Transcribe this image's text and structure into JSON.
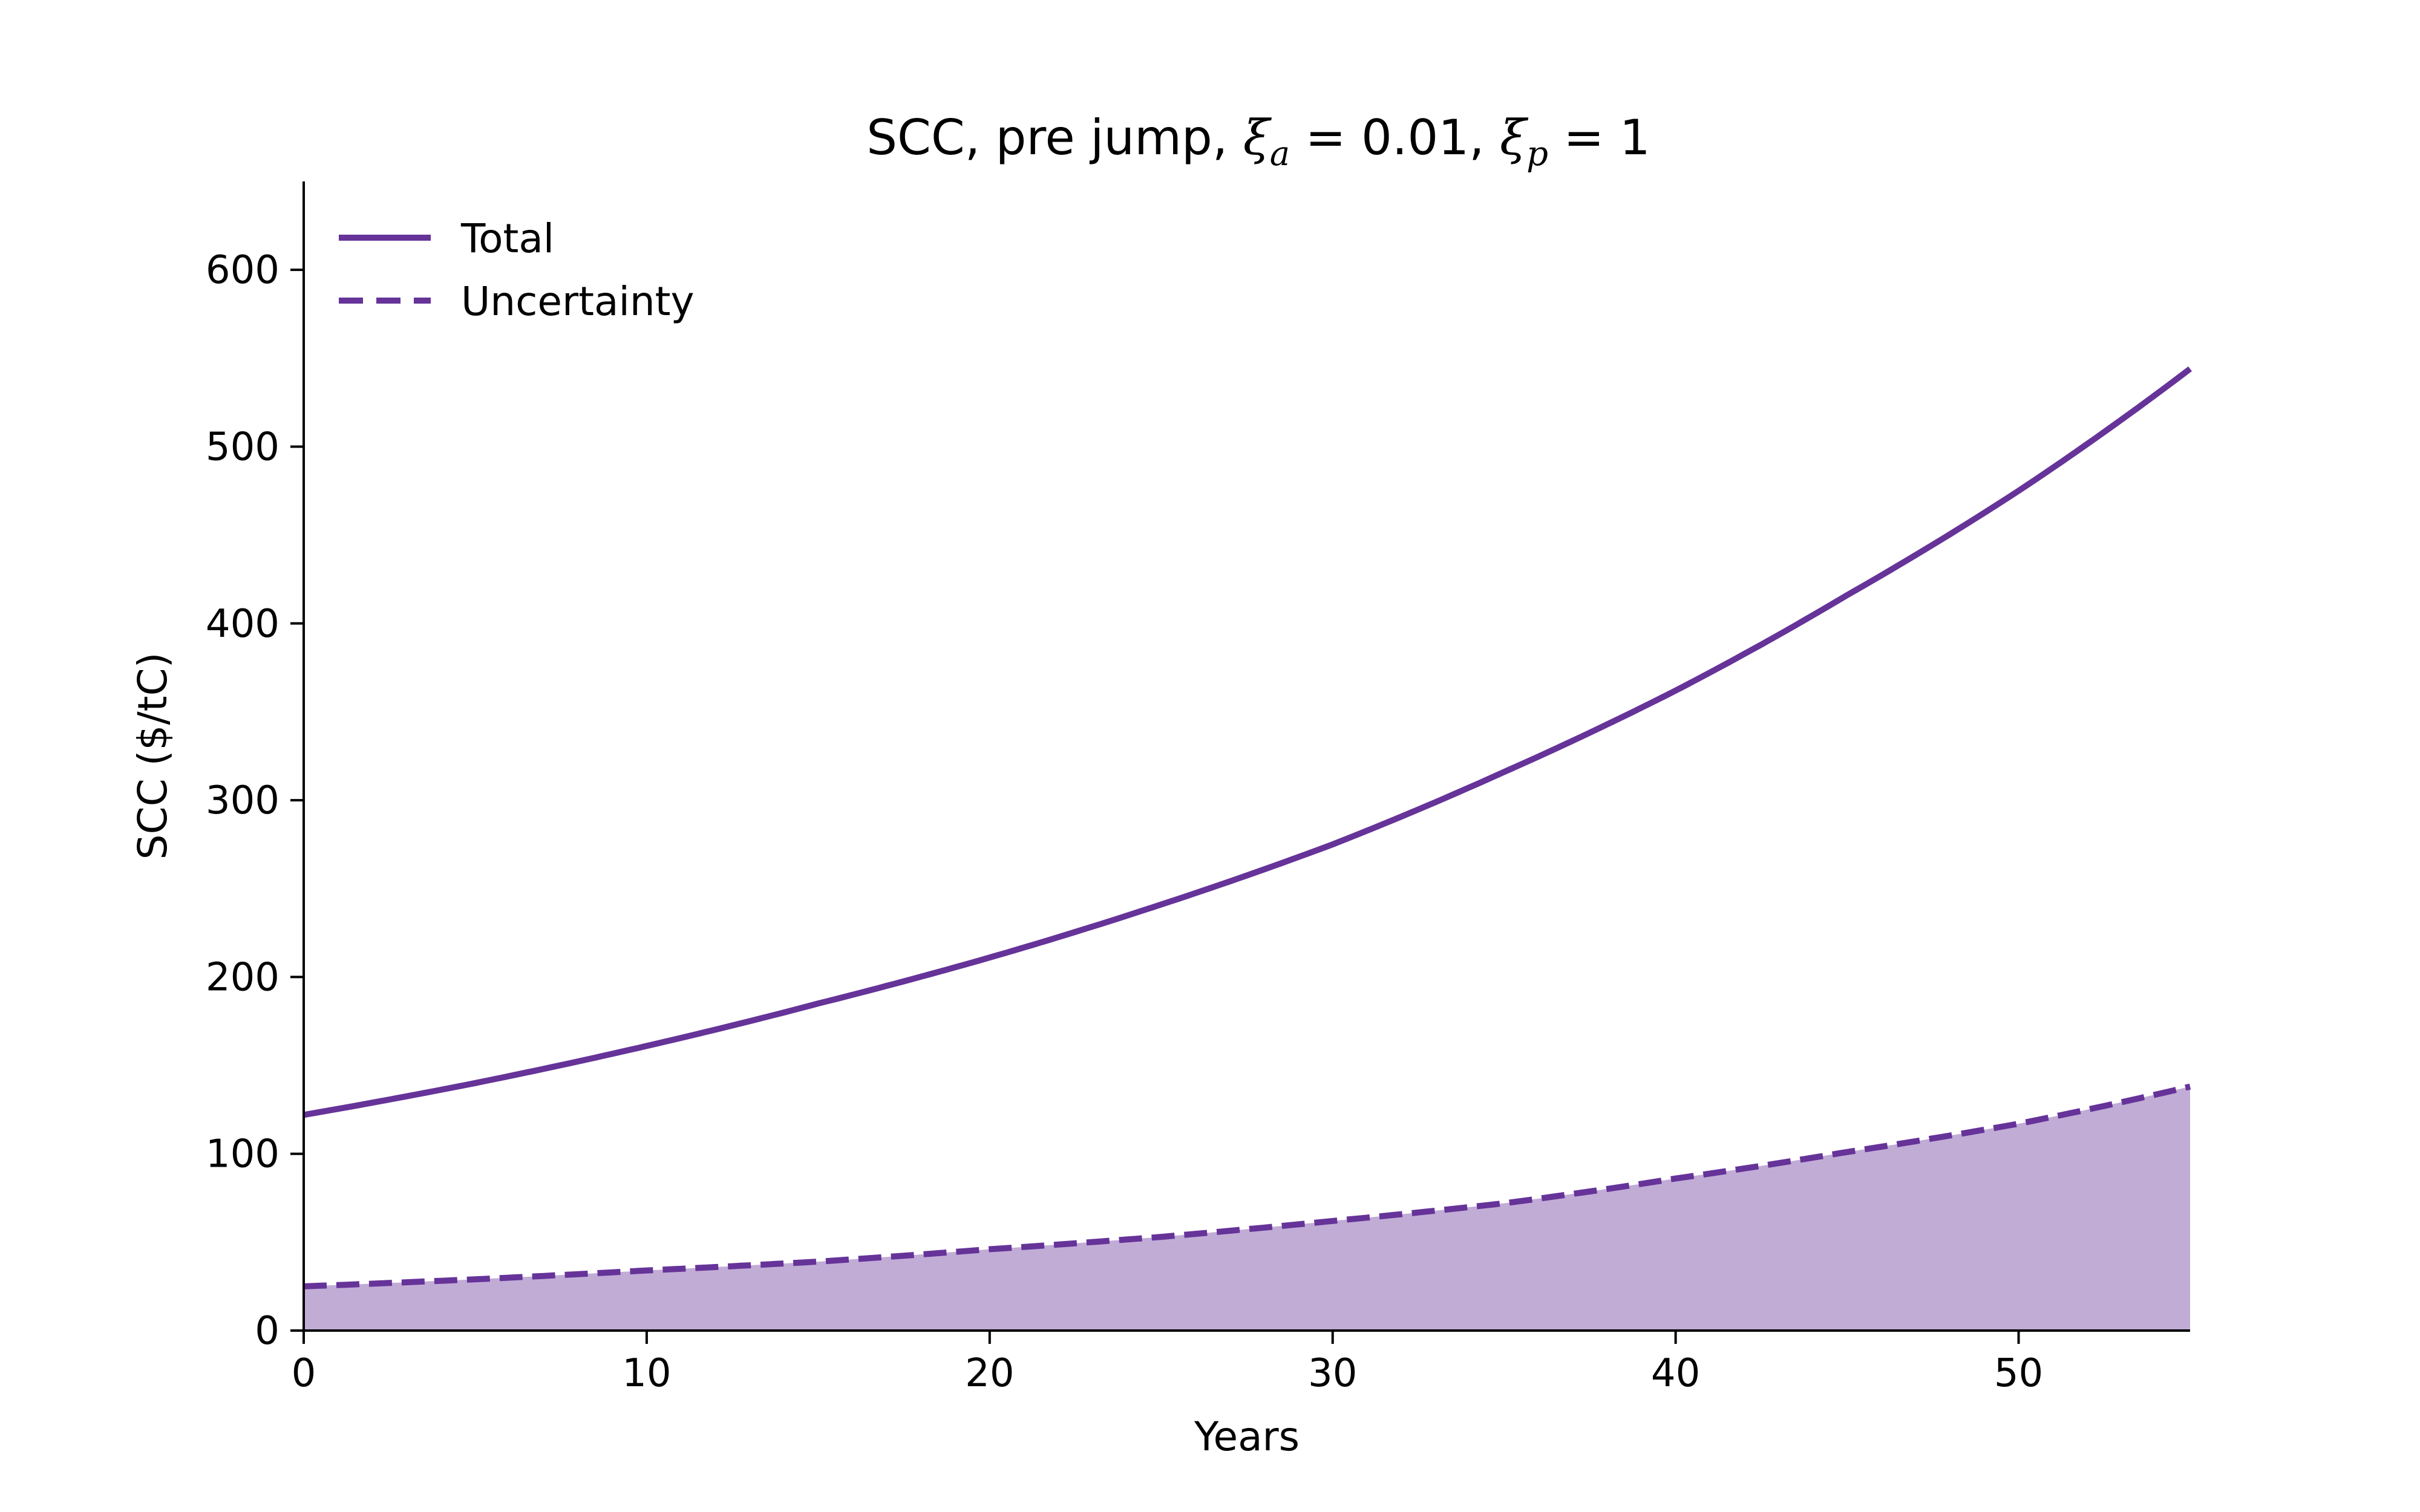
{
  "chart_data": {
    "type": "line",
    "title": {
      "prefix": "SCC, pre jump, ",
      "xi_symbol": "ξ",
      "sub_a": "a",
      "mid": " = 0.01, ",
      "sub_p": "p",
      "suffix": " = 1"
    },
    "xlabel": "Years",
    "ylabel": "SCC ($/tC)",
    "xlim": [
      0,
      55
    ],
    "ylim": [
      0,
      650
    ],
    "xticks": [
      0,
      10,
      20,
      30,
      40,
      50
    ],
    "yticks": [
      0,
      100,
      200,
      300,
      400,
      500,
      600
    ],
    "legend_position": "top-left",
    "grid": false,
    "x": [
      0,
      5,
      10,
      15,
      20,
      25,
      30,
      35,
      40,
      45,
      50,
      55
    ],
    "series": [
      {
        "name": "Total",
        "style": "solid",
        "color": "#663399",
        "values": [
          122,
          140,
          161,
          185,
          211,
          241,
          275,
          316,
          362,
          416,
          475,
          544
        ]
      },
      {
        "name": "Uncertainty",
        "style": "dashed",
        "color": "#663399",
        "fill": "#c1acd6",
        "values": [
          25,
          29,
          34,
          39,
          46,
          53,
          62,
          72,
          86,
          101,
          117,
          138
        ]
      }
    ]
  }
}
